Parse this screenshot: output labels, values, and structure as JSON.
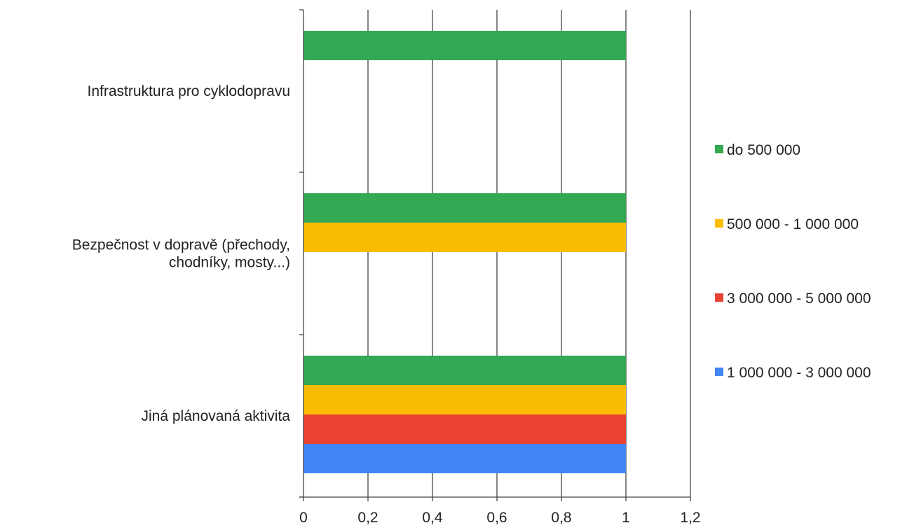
{
  "chart_data": {
    "type": "bar",
    "orientation": "horizontal",
    "categories": [
      [
        "Infrastruktura pro cyklodopravu"
      ],
      [
        "Bezpečnost v dopravě (přechody,",
        "chodníky, mosty...)"
      ],
      [
        "Jiná plánovaná aktivita"
      ]
    ],
    "series": [
      {
        "name": "do 500 000",
        "color": "#34a853",
        "values": [
          1,
          1,
          1
        ]
      },
      {
        "name": "500 000 - 1 000 000",
        "color": "#fbbc04",
        "values": [
          0,
          1,
          1
        ]
      },
      {
        "name": "3 000 000 - 5 000 000",
        "color": "#ea4335",
        "values": [
          0,
          0,
          1
        ]
      },
      {
        "name": "1 000 000 - 3 000 000",
        "color": "#4285f4",
        "values": [
          0,
          0,
          1
        ]
      }
    ],
    "x_ticks": [
      "0",
      "0,2",
      "0,4",
      "0,6",
      "0,8",
      "1",
      "1,2"
    ],
    "xlim": [
      0,
      1.2
    ],
    "grid": true,
    "legend_position": "right",
    "title": "",
    "xlabel": "",
    "ylabel": ""
  }
}
